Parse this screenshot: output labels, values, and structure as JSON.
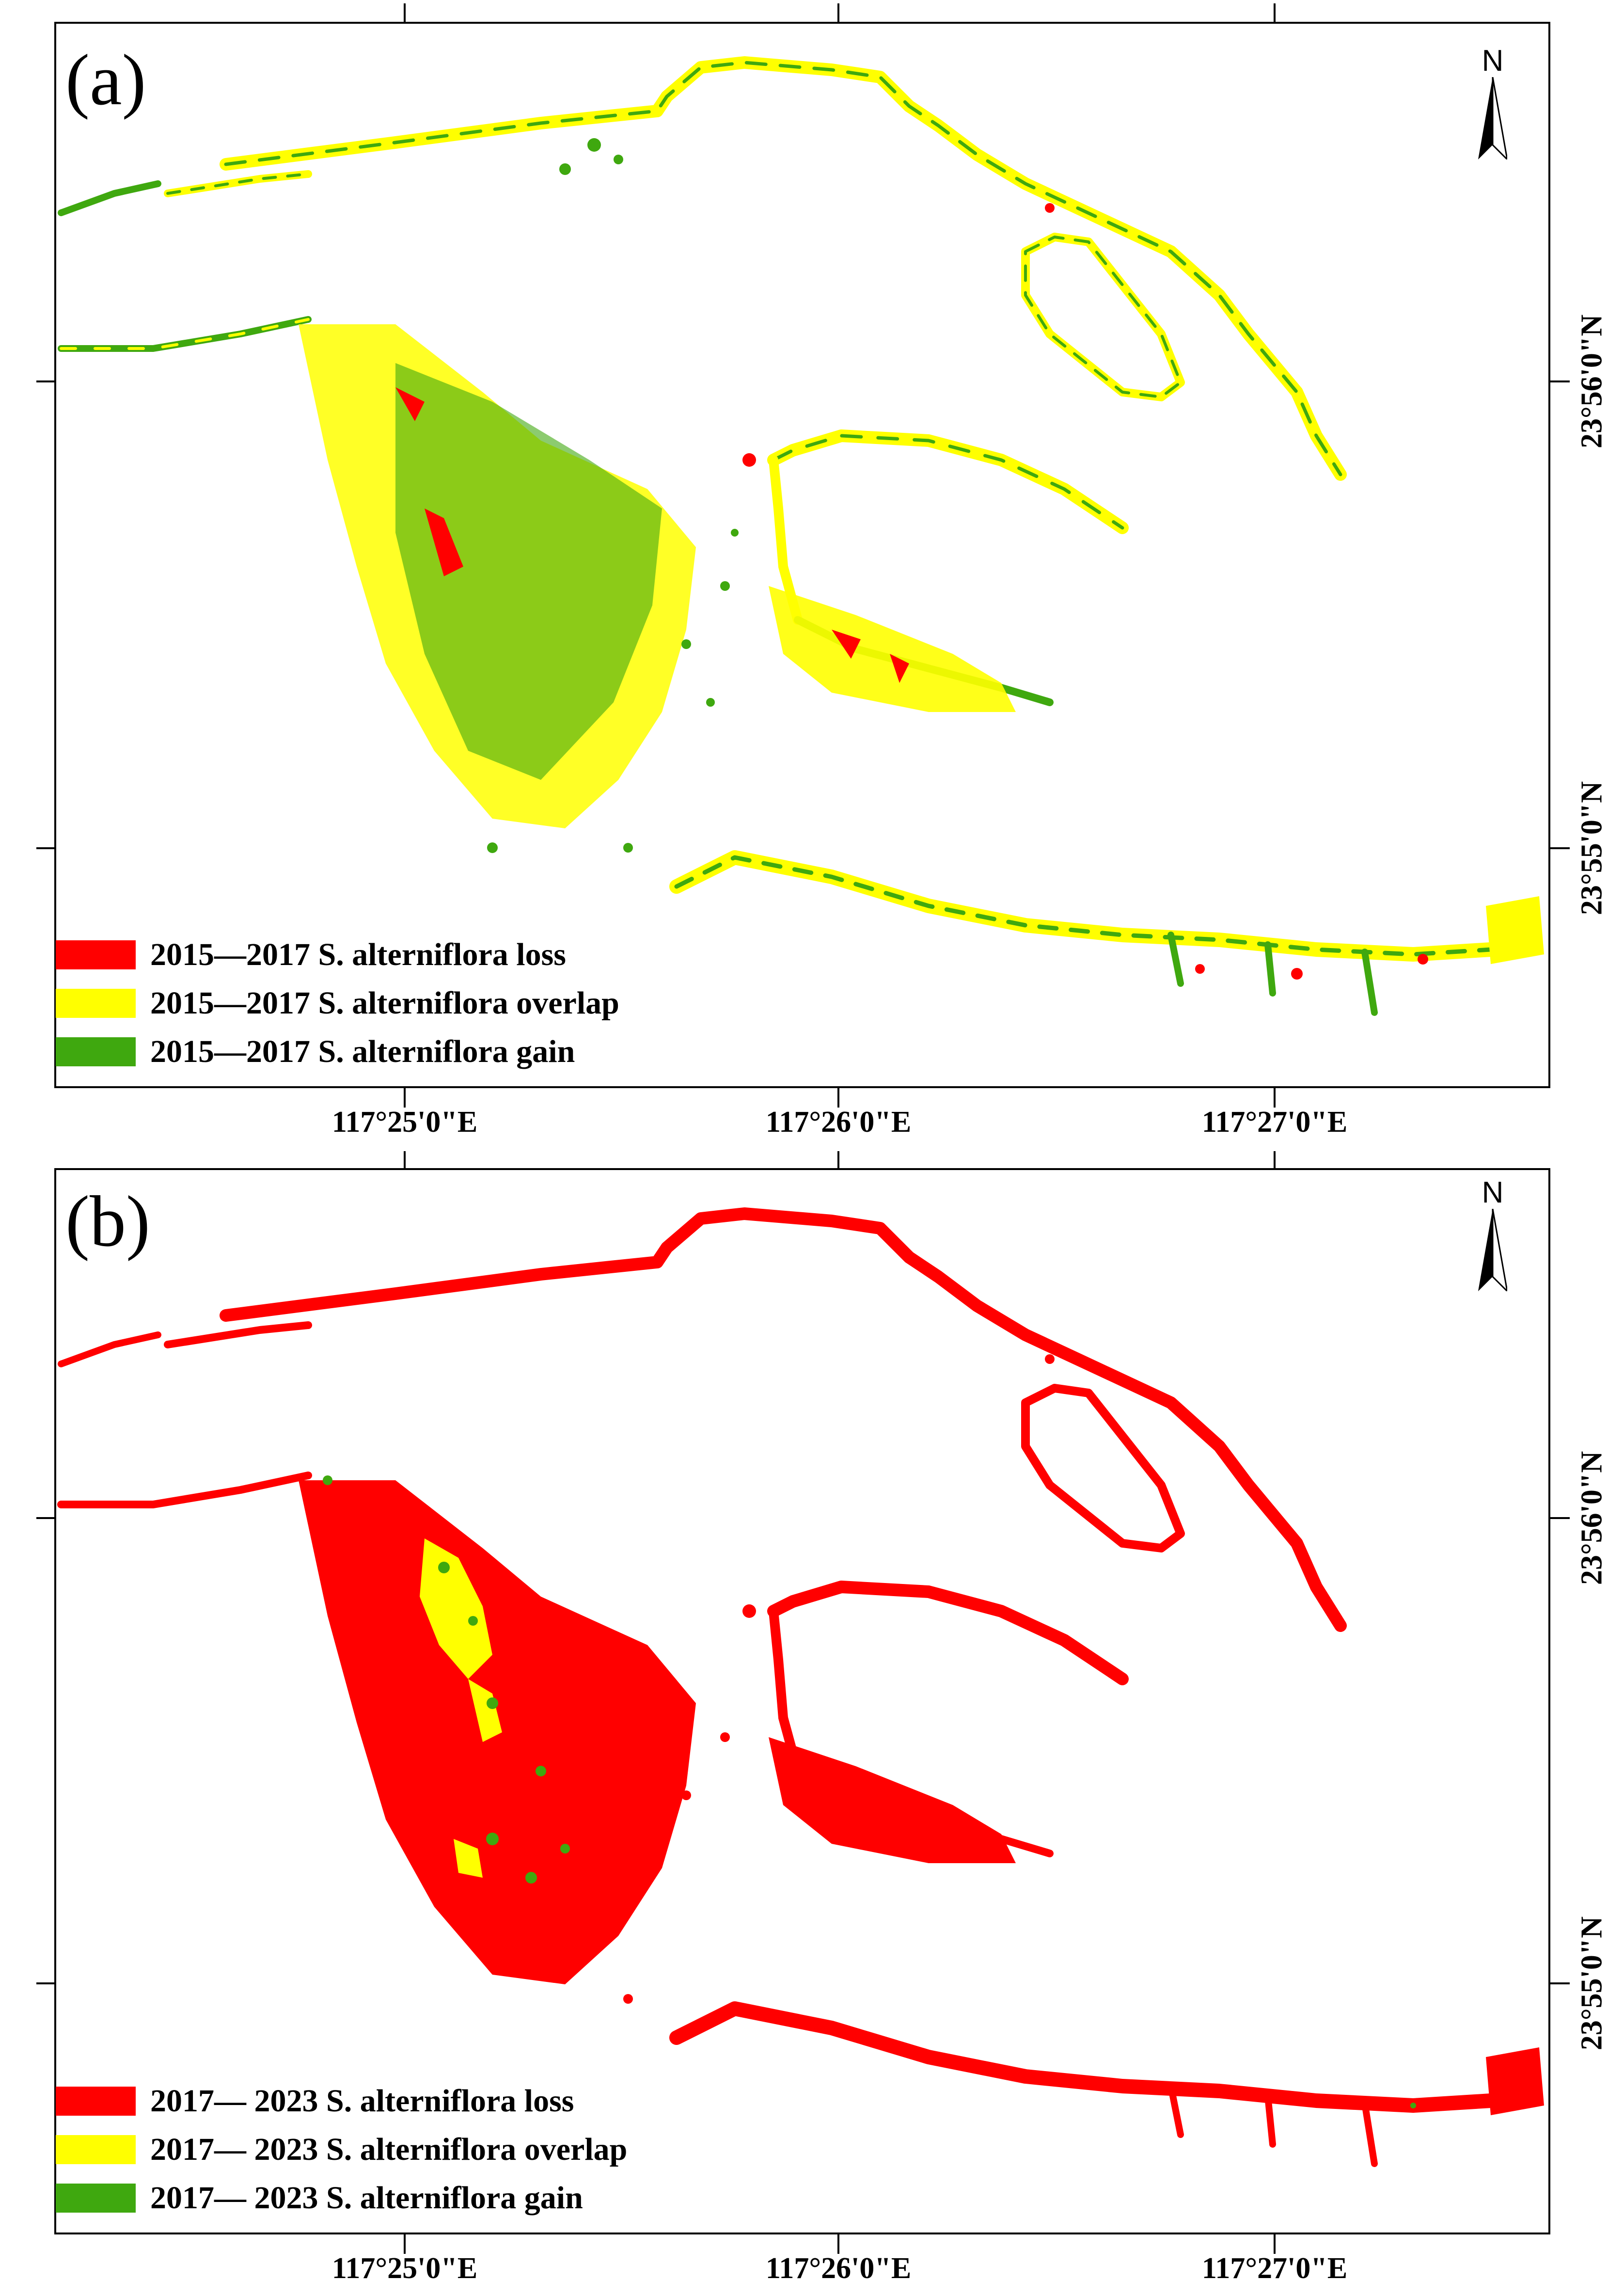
{
  "colors": {
    "loss": "#ff0000",
    "overlap": "#ffff00",
    "gain": "#3fa80f",
    "background": "#ffffff",
    "frame": "#000000"
  },
  "north_arrow": {
    "letter": "N"
  },
  "x_tick_labels": [
    "117°25'0\"E",
    "117°26'0\"E",
    "117°27'0\"E"
  ],
  "y_tick_labels": [
    "23°56'0\"N",
    "23°55'0\"N"
  ],
  "panels": [
    {
      "label": "(a)",
      "legend": [
        {
          "text": "2015—2017 S. alterniflora loss",
          "color_key": "loss"
        },
        {
          "text": "2015—2017 S. alterniflora overlap",
          "color_key": "overlap"
        },
        {
          "text": "2015—2017 S. alterniflora gain",
          "color_key": "gain"
        }
      ]
    },
    {
      "label": "(b)",
      "legend": [
        {
          "text": "2017— 2023 S. alterniflora loss",
          "color_key": "loss"
        },
        {
          "text": "2017— 2023 S. alterniflora overlap",
          "color_key": "overlap"
        },
        {
          "text": "2017— 2023 S. alterniflora gain",
          "color_key": "gain"
        }
      ]
    }
  ]
}
